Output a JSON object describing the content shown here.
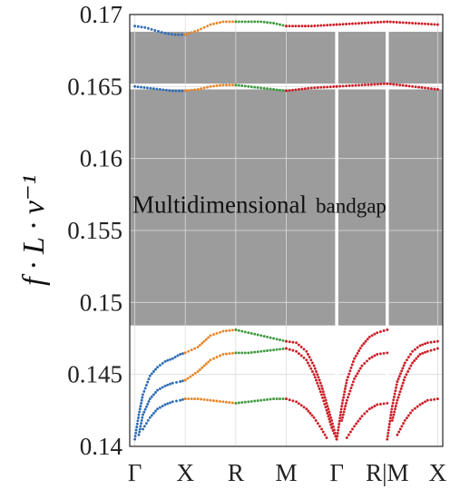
{
  "chart_data": {
    "type": "scatter",
    "title": "",
    "xlabel": "",
    "ylabel": "f · L · v⁻¹",
    "ylim": [
      0.14,
      0.17
    ],
    "yticks": [
      "0.14",
      "0.145",
      "0.15",
      "0.155",
      "0.16",
      "0.165",
      "0.17"
    ],
    "ytick_values": [
      0.14,
      0.145,
      0.15,
      0.155,
      0.16,
      0.165,
      0.17
    ],
    "xticks": [
      "Γ",
      "X",
      "R",
      "M",
      "Γ",
      "R|M",
      "X"
    ],
    "xtick_positions": [
      0,
      1,
      2,
      3,
      4,
      5,
      6
    ],
    "xlim": [
      -0.1,
      6.1
    ],
    "grid": true,
    "bandgaps": [
      {
        "y0": 0.1484,
        "y1": 0.1648,
        "label": "Multidimensional",
        "label_small": "bandgap"
      },
      {
        "y0": 0.1652,
        "y1": 0.1688,
        "label": "",
        "label_small": ""
      }
    ],
    "segment_breaks": [
      4,
      5
    ],
    "series": [
      {
        "color": "#2f6db5",
        "x": [
          0,
          0.2,
          0.4,
          0.6,
          0.8,
          1.0
        ],
        "values": [
          0.1692,
          0.1691,
          0.1689,
          0.1687,
          0.1686,
          0.1686
        ]
      },
      {
        "color": "#e8862a",
        "x": [
          1.0,
          1.25,
          1.5,
          1.75,
          2.0
        ],
        "values": [
          0.1686,
          0.1689,
          0.1693,
          0.1695,
          0.1695
        ]
      },
      {
        "color": "#3e9a3e",
        "x": [
          2.0,
          2.25,
          2.5,
          2.75,
          3.0
        ],
        "values": [
          0.1695,
          0.1695,
          0.1695,
          0.1694,
          0.1692
        ]
      },
      {
        "color": "#cc1f27",
        "x": [
          3.0,
          3.5,
          4.0
        ],
        "values": [
          0.1692,
          0.1692,
          0.1693
        ]
      },
      {
        "color": "#cc1f27",
        "x": [
          4.0,
          4.5,
          5.0
        ],
        "values": [
          0.1693,
          0.1694,
          0.1695
        ]
      },
      {
        "color": "#cc1f27",
        "x": [
          5.0,
          5.5,
          6.0
        ],
        "values": [
          0.1695,
          0.1694,
          0.1693
        ]
      },
      {
        "color": "#2f6db5",
        "x": [
          0,
          0.25,
          0.5,
          0.75,
          1.0
        ],
        "values": [
          0.165,
          0.1649,
          0.1648,
          0.1647,
          0.1647
        ]
      },
      {
        "color": "#e8862a",
        "x": [
          1.0,
          1.25,
          1.5,
          1.75,
          2.0
        ],
        "values": [
          0.1647,
          0.1648,
          0.165,
          0.1651,
          0.1651
        ]
      },
      {
        "color": "#3e9a3e",
        "x": [
          2.0,
          2.25,
          2.5,
          2.75,
          3.0
        ],
        "values": [
          0.1651,
          0.165,
          0.1649,
          0.1648,
          0.1647
        ]
      },
      {
        "color": "#cc1f27",
        "x": [
          3.0,
          3.5,
          4.0
        ],
        "values": [
          0.1647,
          0.1649,
          0.165
        ]
      },
      {
        "color": "#cc1f27",
        "x": [
          4.0,
          4.5,
          5.0
        ],
        "values": [
          0.165,
          0.1651,
          0.1652
        ]
      },
      {
        "color": "#cc1f27",
        "x": [
          5.0,
          5.5,
          6.0
        ],
        "values": [
          0.1652,
          0.165,
          0.1648
        ]
      },
      {
        "color": "#2f6db5",
        "x": [
          0,
          0.08,
          0.16,
          0.3,
          0.45,
          0.6,
          0.75,
          0.9,
          1.0
        ],
        "values": [
          0.1405,
          0.1422,
          0.1436,
          0.1449,
          0.1455,
          0.1459,
          0.1461,
          0.1464,
          0.1465
        ]
      },
      {
        "color": "#e8862a",
        "x": [
          1.0,
          1.25,
          1.5,
          1.75,
          2.0
        ],
        "values": [
          0.1465,
          0.1469,
          0.1477,
          0.148,
          0.1481
        ]
      },
      {
        "color": "#3e9a3e",
        "x": [
          2.0,
          2.25,
          2.5,
          2.75,
          3.0
        ],
        "values": [
          0.1481,
          0.1479,
          0.1477,
          0.1475,
          0.1473
        ]
      },
      {
        "color": "#cc1f27",
        "x": [
          3.0,
          3.2,
          3.4,
          3.55,
          3.7,
          3.8,
          3.9,
          4.0
        ],
        "values": [
          0.1473,
          0.1472,
          0.1466,
          0.1456,
          0.1442,
          0.143,
          0.1418,
          0.1405
        ]
      },
      {
        "color": "#cc1f27",
        "x": [
          4.0,
          4.1,
          4.2,
          4.35,
          4.5,
          4.65,
          4.8,
          5.0
        ],
        "values": [
          0.1405,
          0.1428,
          0.1446,
          0.1461,
          0.147,
          0.1476,
          0.1479,
          0.1481
        ]
      },
      {
        "color": "#cc1f27",
        "x": [
          5.0,
          5.1,
          5.2,
          5.35,
          5.5,
          5.65,
          5.8,
          6.0
        ],
        "values": [
          0.1405,
          0.1428,
          0.1445,
          0.1458,
          0.1466,
          0.147,
          0.1472,
          0.1473
        ]
      },
      {
        "color": "#2f6db5",
        "x": [
          0.08,
          0.16,
          0.3,
          0.45,
          0.6,
          0.75,
          0.9,
          1.0
        ],
        "values": [
          0.1408,
          0.1422,
          0.1433,
          0.1439,
          0.1442,
          0.1444,
          0.1445,
          0.1446
        ]
      },
      {
        "color": "#e8862a",
        "x": [
          1.0,
          1.25,
          1.5,
          1.75,
          2.0
        ],
        "values": [
          0.1446,
          0.1452,
          0.146,
          0.1464,
          0.1465
        ]
      },
      {
        "color": "#3e9a3e",
        "x": [
          2.0,
          2.25,
          2.5,
          2.75,
          3.0
        ],
        "values": [
          0.1465,
          0.1465,
          0.1466,
          0.1467,
          0.1468
        ]
      },
      {
        "color": "#cc1f27",
        "x": [
          3.0,
          3.2,
          3.4,
          3.55,
          3.7,
          3.8,
          3.9,
          4.0
        ],
        "values": [
          0.1468,
          0.1466,
          0.146,
          0.145,
          0.1436,
          0.1425,
          0.1413,
          0.1405
        ]
      },
      {
        "color": "#cc1f27",
        "x": [
          4.1,
          4.2,
          4.35,
          4.5,
          4.65,
          4.8,
          5.0
        ],
        "values": [
          0.1418,
          0.1432,
          0.1447,
          0.1456,
          0.1461,
          0.1464,
          0.1465
        ]
      },
      {
        "color": "#cc1f27",
        "x": [
          5.1,
          5.2,
          5.35,
          5.5,
          5.65,
          5.8,
          6.0
        ],
        "values": [
          0.1418,
          0.1432,
          0.1448,
          0.1458,
          0.1464,
          0.1466,
          0.1468
        ]
      },
      {
        "color": "#2f6db5",
        "x": [
          0.16,
          0.3,
          0.45,
          0.6,
          0.75,
          0.9,
          1.0
        ],
        "values": [
          0.1412,
          0.142,
          0.1426,
          0.1429,
          0.1431,
          0.1432,
          0.1433
        ]
      },
      {
        "color": "#e8862a",
        "x": [
          1.0,
          1.25,
          1.5,
          1.75,
          2.0
        ],
        "values": [
          0.1433,
          0.1433,
          0.1432,
          0.1431,
          0.143
        ]
      },
      {
        "color": "#3e9a3e",
        "x": [
          2.0,
          2.25,
          2.5,
          2.75,
          3.0
        ],
        "values": [
          0.143,
          0.1431,
          0.1432,
          0.1433,
          0.1433
        ]
      },
      {
        "color": "#cc1f27",
        "x": [
          3.0,
          3.2,
          3.4,
          3.55,
          3.7,
          3.8
        ],
        "values": [
          0.1433,
          0.1431,
          0.1426,
          0.142,
          0.1412,
          0.1406
        ]
      },
      {
        "color": "#cc1f27",
        "x": [
          4.2,
          4.35,
          4.5,
          4.65,
          4.8,
          5.0
        ],
        "values": [
          0.1406,
          0.1414,
          0.1421,
          0.1426,
          0.1429,
          0.143
        ]
      },
      {
        "color": "#cc1f27",
        "x": [
          5.2,
          5.35,
          5.5,
          5.65,
          5.8,
          6.0
        ],
        "values": [
          0.1408,
          0.1418,
          0.1425,
          0.1429,
          0.1432,
          0.1433
        ]
      }
    ]
  }
}
